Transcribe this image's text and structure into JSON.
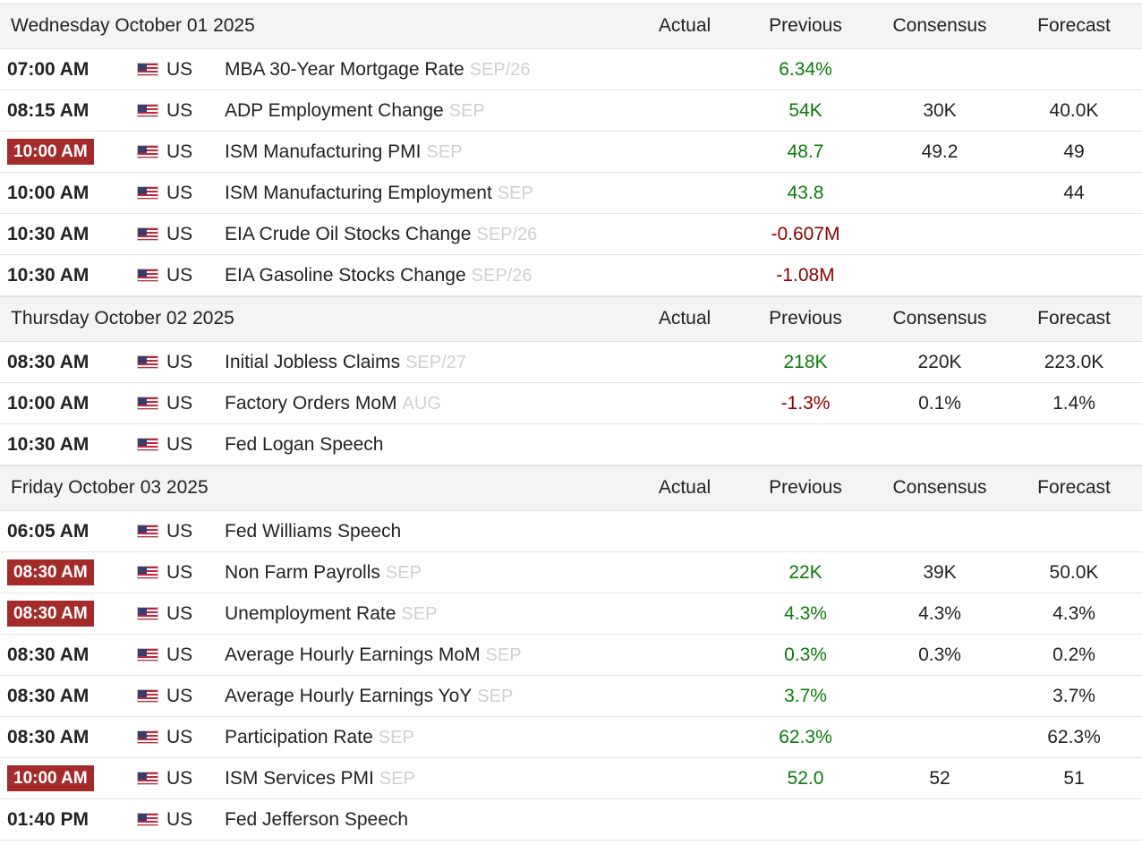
{
  "columns": {
    "actual": "Actual",
    "previous": "Previous",
    "consensus": "Consensus",
    "forecast": "Forecast"
  },
  "colors": {
    "high_impact_bg": "#a52a2a",
    "positive": "#0b7a0b",
    "negative": "#8b0000",
    "header_bg": "#f4f4f4"
  },
  "days": [
    {
      "date": "Wednesday October 01 2025",
      "events": [
        {
          "time": "07:00 AM",
          "high": false,
          "country": "US",
          "flag_icon": "us-flag-icon",
          "event": "MBA 30-Year Mortgage Rate",
          "ref": "SEP/26",
          "actual": "",
          "previous": "6.34%",
          "previous_trend": "pos",
          "consensus": "",
          "forecast": ""
        },
        {
          "time": "08:15 AM",
          "high": false,
          "country": "US",
          "flag_icon": "us-flag-icon",
          "event": "ADP Employment Change",
          "ref": "SEP",
          "actual": "",
          "previous": "54K",
          "previous_trend": "pos",
          "consensus": "30K",
          "forecast": "40.0K"
        },
        {
          "time": "10:00 AM",
          "high": true,
          "country": "US",
          "flag_icon": "us-flag-icon",
          "event": "ISM Manufacturing PMI",
          "ref": "SEP",
          "actual": "",
          "previous": "48.7",
          "previous_trend": "pos",
          "consensus": "49.2",
          "forecast": "49"
        },
        {
          "time": "10:00 AM",
          "high": false,
          "country": "US",
          "flag_icon": "us-flag-icon",
          "event": "ISM Manufacturing Employment",
          "ref": "SEP",
          "actual": "",
          "previous": "43.8",
          "previous_trend": "pos",
          "consensus": "",
          "forecast": "44"
        },
        {
          "time": "10:30 AM",
          "high": false,
          "country": "US",
          "flag_icon": "us-flag-icon",
          "event": "EIA Crude Oil Stocks Change",
          "ref": "SEP/26",
          "actual": "",
          "previous": "-0.607M",
          "previous_trend": "neg",
          "consensus": "",
          "forecast": ""
        },
        {
          "time": "10:30 AM",
          "high": false,
          "country": "US",
          "flag_icon": "us-flag-icon",
          "event": "EIA Gasoline Stocks Change",
          "ref": "SEP/26",
          "actual": "",
          "previous": "-1.08M",
          "previous_trend": "neg",
          "consensus": "",
          "forecast": ""
        }
      ]
    },
    {
      "date": "Thursday October 02 2025",
      "events": [
        {
          "time": "08:30 AM",
          "high": false,
          "country": "US",
          "flag_icon": "us-flag-icon",
          "event": "Initial Jobless Claims",
          "ref": "SEP/27",
          "actual": "",
          "previous": "218K",
          "previous_trend": "pos",
          "consensus": "220K",
          "forecast": "223.0K"
        },
        {
          "time": "10:00 AM",
          "high": false,
          "country": "US",
          "flag_icon": "us-flag-icon",
          "event": "Factory Orders MoM",
          "ref": "AUG",
          "actual": "",
          "previous": "-1.3%",
          "previous_trend": "neg",
          "consensus": "0.1%",
          "forecast": "1.4%"
        },
        {
          "time": "10:30 AM",
          "high": false,
          "country": "US",
          "flag_icon": "us-flag-icon",
          "event": "Fed Logan Speech",
          "ref": "",
          "actual": "",
          "previous": "",
          "previous_trend": "neutral",
          "consensus": "",
          "forecast": ""
        }
      ]
    },
    {
      "date": "Friday October 03 2025",
      "events": [
        {
          "time": "06:05 AM",
          "high": false,
          "country": "US",
          "flag_icon": "us-flag-icon",
          "event": "Fed Williams Speech",
          "ref": "",
          "actual": "",
          "previous": "",
          "previous_trend": "neutral",
          "consensus": "",
          "forecast": ""
        },
        {
          "time": "08:30 AM",
          "high": true,
          "country": "US",
          "flag_icon": "us-flag-icon",
          "event": "Non Farm Payrolls",
          "ref": "SEP",
          "actual": "",
          "previous": "22K",
          "previous_trend": "pos",
          "consensus": "39K",
          "forecast": "50.0K"
        },
        {
          "time": "08:30 AM",
          "high": true,
          "country": "US",
          "flag_icon": "us-flag-icon",
          "event": "Unemployment Rate",
          "ref": "SEP",
          "actual": "",
          "previous": "4.3%",
          "previous_trend": "pos",
          "consensus": "4.3%",
          "forecast": "4.3%"
        },
        {
          "time": "08:30 AM",
          "high": false,
          "country": "US",
          "flag_icon": "us-flag-icon",
          "event": "Average Hourly Earnings MoM",
          "ref": "SEP",
          "actual": "",
          "previous": "0.3%",
          "previous_trend": "pos",
          "consensus": "0.3%",
          "forecast": "0.2%"
        },
        {
          "time": "08:30 AM",
          "high": false,
          "country": "US",
          "flag_icon": "us-flag-icon",
          "event": "Average Hourly Earnings YoY",
          "ref": "SEP",
          "actual": "",
          "previous": "3.7%",
          "previous_trend": "pos",
          "consensus": "",
          "forecast": "3.7%"
        },
        {
          "time": "08:30 AM",
          "high": false,
          "country": "US",
          "flag_icon": "us-flag-icon",
          "event": "Participation Rate",
          "ref": "SEP",
          "actual": "",
          "previous": "62.3%",
          "previous_trend": "pos",
          "consensus": "",
          "forecast": "62.3%"
        },
        {
          "time": "10:00 AM",
          "high": true,
          "country": "US",
          "flag_icon": "us-flag-icon",
          "event": "ISM Services PMI",
          "ref": "SEP",
          "actual": "",
          "previous": "52.0",
          "previous_trend": "pos",
          "consensus": "52",
          "forecast": "51"
        },
        {
          "time": "01:40 PM",
          "high": false,
          "country": "US",
          "flag_icon": "us-flag-icon",
          "event": "Fed Jefferson Speech",
          "ref": "",
          "actual": "",
          "previous": "",
          "previous_trend": "neutral",
          "consensus": "",
          "forecast": ""
        }
      ]
    }
  ]
}
